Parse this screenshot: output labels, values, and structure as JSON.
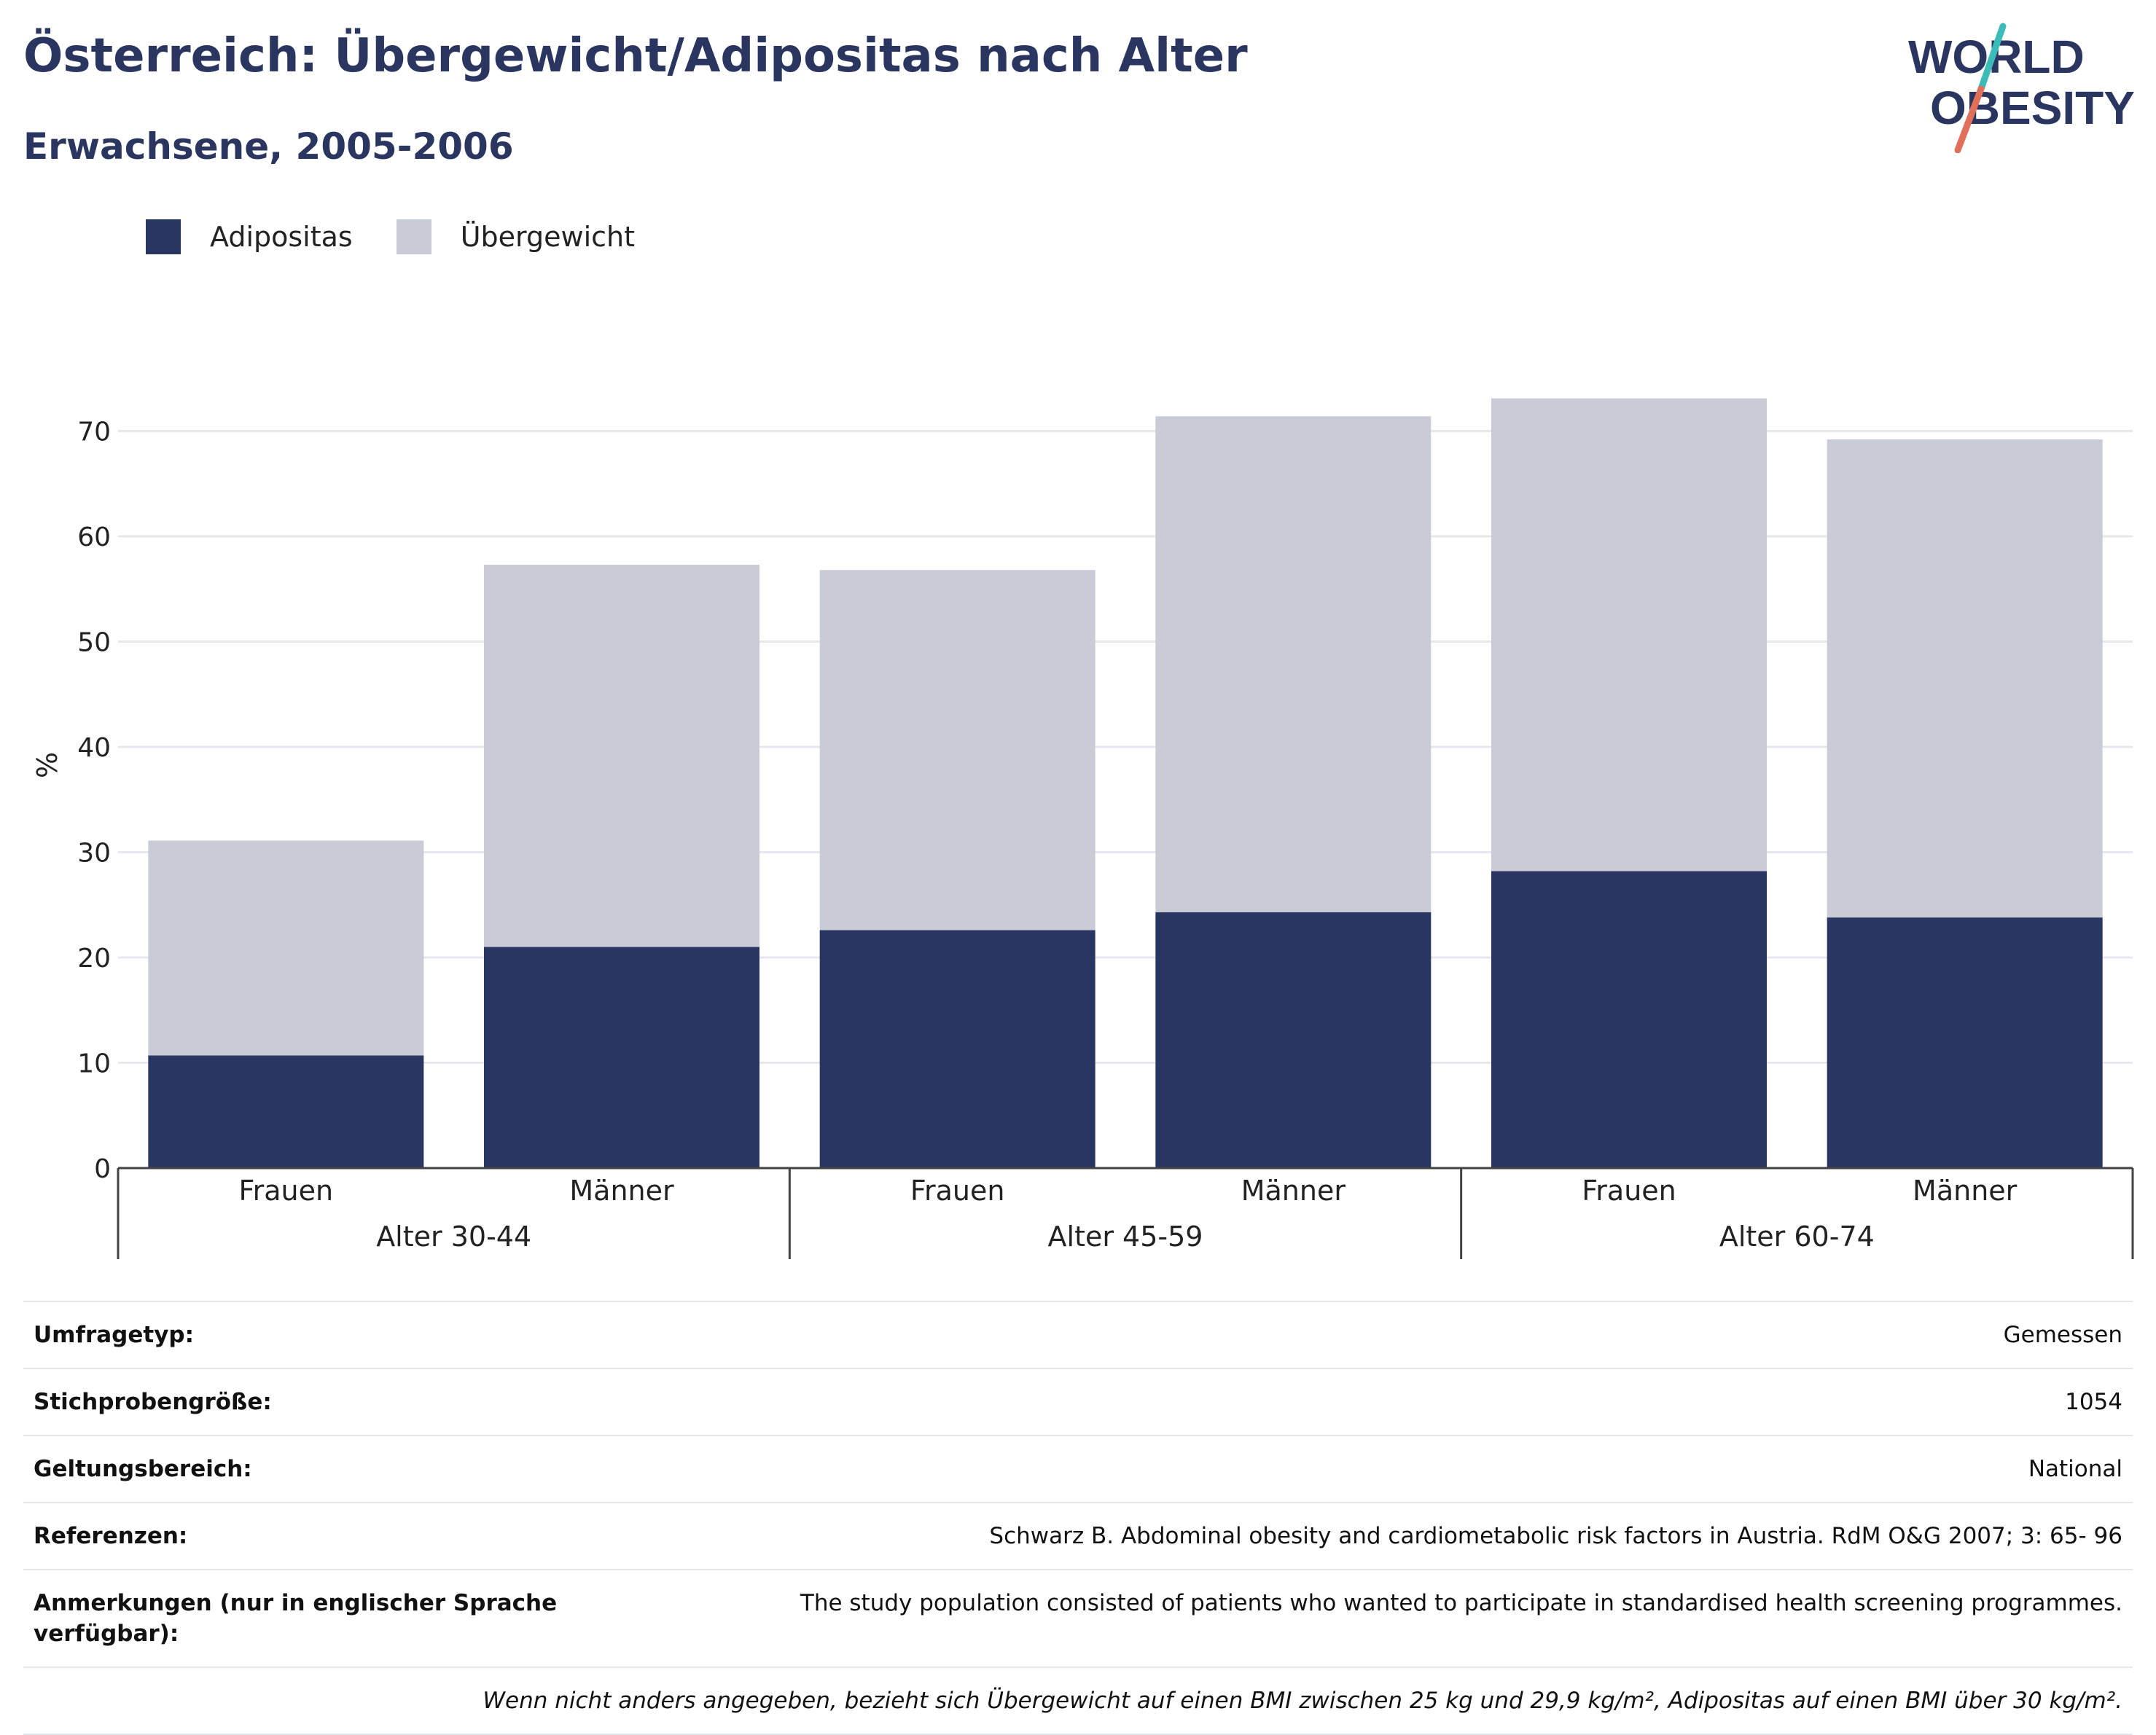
{
  "header": {
    "title": "Österreich: Übergewicht/Adipositas nach Alter",
    "subtitle": "Erwachsene, 2005-2006"
  },
  "logo": {
    "line1": "WORLD",
    "line2": "OBESITY",
    "colors": {
      "text": "#2a3560",
      "slash_top": "#3cbcb8",
      "slash_bottom": "#e0705a"
    }
  },
  "legend": [
    {
      "label": "Adipositas",
      "color": "#2a3662"
    },
    {
      "label": "Übergewicht",
      "color": "#c9cbd7"
    }
  ],
  "chart_data": {
    "type": "bar",
    "stacked": true,
    "ylabel": "%",
    "ylim": [
      0,
      75
    ],
    "yticks": [
      0,
      10,
      20,
      30,
      40,
      50,
      60,
      70
    ],
    "grid": true,
    "legend_position": "top-left",
    "groups": [
      {
        "label": "Alter 30-44",
        "categories": [
          "Frauen",
          "Männer"
        ]
      },
      {
        "label": "Alter 45-59",
        "categories": [
          "Frauen",
          "Männer"
        ]
      },
      {
        "label": "Alter 60-74",
        "categories": [
          "Frauen",
          "Männer"
        ]
      }
    ],
    "categories": [
      "Frauen",
      "Männer",
      "Frauen",
      "Männer",
      "Frauen",
      "Männer"
    ],
    "series": [
      {
        "name": "Adipositas",
        "color": "#2a3662",
        "values": [
          10.7,
          21.0,
          22.6,
          24.3,
          28.2,
          23.8
        ]
      },
      {
        "name": "Übergewicht",
        "color": "#c9cbd7",
        "values": [
          20.4,
          36.3,
          34.2,
          47.1,
          44.9,
          45.4
        ]
      }
    ]
  },
  "info": {
    "rows": [
      {
        "key": "Umfragetyp:",
        "value": "Gemessen"
      },
      {
        "key": "Stichprobengröße:",
        "value": "1054"
      },
      {
        "key": "Geltungsbereich:",
        "value": "National"
      },
      {
        "key": "Referenzen:",
        "value": "Schwarz B. Abdominal obesity and cardiometabolic risk factors in Austria. RdM O&G 2007; 3: 65- 96"
      },
      {
        "key": "Anmerkungen (nur in englischer Sprache verfügbar):",
        "value": "The study population consisted of patients who wanted to participate in standardised health screening programmes."
      }
    ],
    "note": "Wenn nicht anders angegeben, bezieht sich Übergewicht auf einen BMI zwischen 25 kg und 29,9 kg/m², Adipositas auf einen BMI über 30 kg/m²."
  }
}
